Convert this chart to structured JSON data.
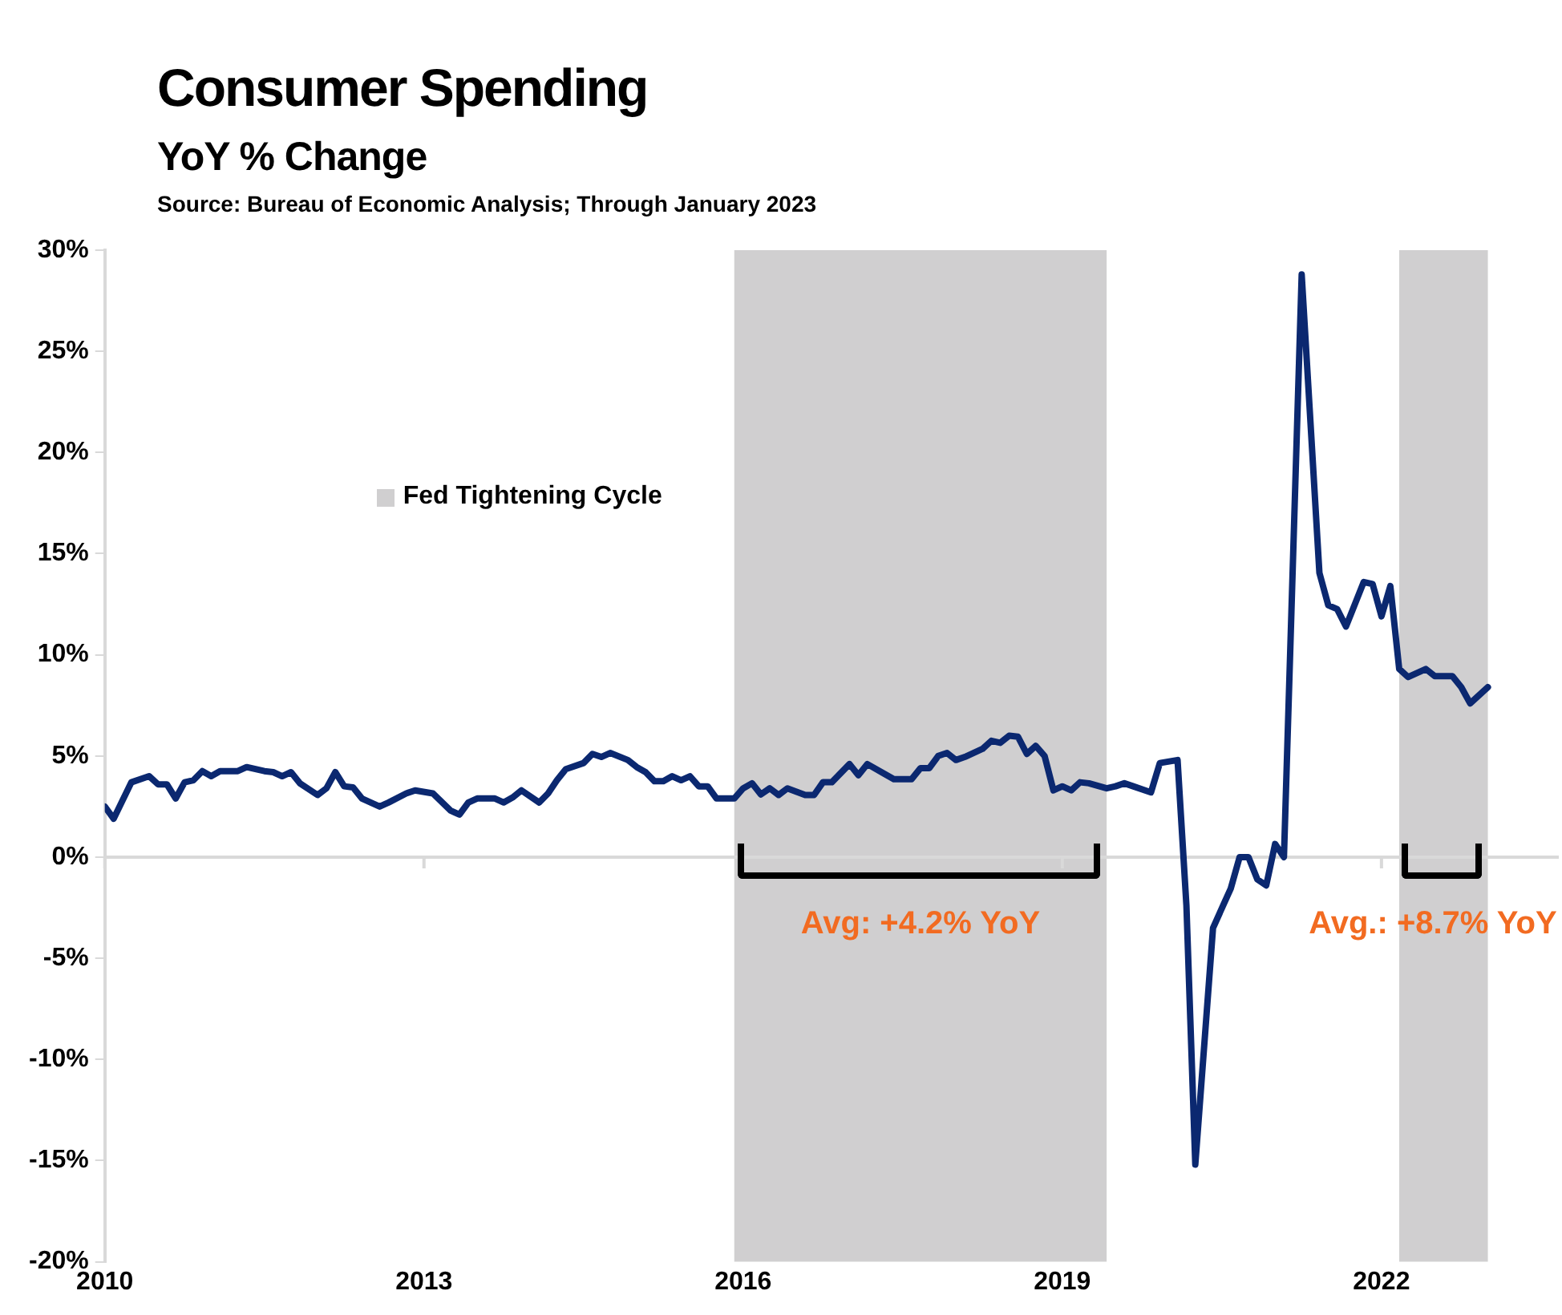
{
  "chart_data": {
    "type": "line",
    "title": "Consumer Spending",
    "subtitle": "YoY % Change",
    "annotations": [
      "Source: Bureau of Economic Analysis; Through January 2023",
      {
        "text": "Avg: +4.2% YoY",
        "x": "2017-09",
        "y": 0
      },
      {
        "text": "Avg.: +8.7% YoY",
        "x": "2022-08",
        "y": 0
      }
    ],
    "series": [
      {
        "color": "#0b2870",
        "x": [
          "2010-01",
          "2010-02",
          "2010-04",
          "2010-06",
          "2010-07",
          "2010-08",
          "2010-09",
          "2010-10",
          "2010-11",
          "2010-12",
          "2011-01",
          "2011-02",
          "2011-04",
          "2011-05",
          "2011-07",
          "2011-08",
          "2011-09",
          "2011-10",
          "2011-11",
          "2012-01",
          "2012-02",
          "2012-03",
          "2012-04",
          "2012-05",
          "2012-06",
          "2012-08",
          "2012-09",
          "2012-11",
          "2012-12",
          "2013-02",
          "2013-04",
          "2013-05",
          "2013-06",
          "2013-07",
          "2013-09",
          "2013-10",
          "2013-11",
          "2013-12",
          "2014-02",
          "2014-03",
          "2014-04",
          "2014-05",
          "2014-07",
          "2014-08",
          "2014-09",
          "2014-10",
          "2014-12",
          "2015-01",
          "2015-02",
          "2015-03",
          "2015-04",
          "2015-05",
          "2015-06",
          "2015-07",
          "2015-08",
          "2015-09",
          "2015-10",
          "2015-12",
          "2016-01",
          "2016-02",
          "2016-03",
          "2016-04",
          "2016-05",
          "2016-06",
          "2016-08",
          "2016-09",
          "2016-10",
          "2016-11",
          "2017-01",
          "2017-02",
          "2017-03",
          "2017-05",
          "2017-06",
          "2017-08",
          "2017-09",
          "2017-10",
          "2017-11",
          "2017-12",
          "2018-01",
          "2018-02",
          "2018-04",
          "2018-05",
          "2018-06",
          "2018-07",
          "2018-08",
          "2018-09",
          "2018-10",
          "2018-11",
          "2018-12",
          "2019-01",
          "2019-02",
          "2019-03",
          "2019-04",
          "2019-06",
          "2019-07",
          "2019-08",
          "2019-09",
          "2019-11",
          "2019-12",
          "2020-02",
          "2020-03",
          "2020-04",
          "2020-06",
          "2020-08",
          "2020-09",
          "2020-10",
          "2020-11",
          "2020-12",
          "2021-01",
          "2021-02",
          "2021-04",
          "2021-06",
          "2021-07",
          "2021-08",
          "2021-09",
          "2021-11",
          "2021-12",
          "2022-01",
          "2022-02",
          "2022-03",
          "2022-04",
          "2022-06",
          "2022-07",
          "2022-09",
          "2022-10",
          "2022-11",
          "2023-01"
        ],
        "values": [
          2.5,
          1.9,
          3.7,
          4.0,
          3.6,
          3.6,
          2.9,
          3.7,
          3.8,
          4.25,
          4.0,
          4.25,
          4.25,
          4.45,
          4.25,
          4.2,
          4.0,
          4.2,
          3.65,
          3.07,
          3.4,
          4.2,
          3.5,
          3.45,
          2.9,
          2.5,
          2.7,
          3.15,
          3.3,
          3.15,
          2.3,
          2.1,
          2.7,
          2.9,
          2.9,
          2.7,
          2.95,
          3.3,
          2.7,
          3.15,
          3.8,
          4.35,
          4.65,
          5.1,
          4.95,
          5.15,
          4.8,
          4.45,
          4.2,
          3.75,
          3.75,
          4.0,
          3.8,
          4.0,
          3.5,
          3.5,
          2.9,
          2.9,
          3.4,
          3.65,
          3.1,
          3.4,
          3.07,
          3.4,
          3.07,
          3.07,
          3.7,
          3.7,
          4.6,
          4.05,
          4.6,
          4.1,
          3.85,
          3.85,
          4.4,
          4.4,
          5.0,
          5.15,
          4.8,
          4.95,
          5.35,
          5.75,
          5.65,
          6.0,
          5.95,
          5.1,
          5.5,
          5.0,
          3.3,
          3.5,
          3.3,
          3.7,
          3.65,
          3.4,
          3.5,
          3.65,
          3.5,
          3.2,
          4.65,
          4.8,
          -2.4,
          -15.2,
          -3.5,
          -1.55,
          0,
          0,
          -1.1,
          -1.4,
          0.65,
          0,
          28.8,
          14.05,
          12.45,
          12.26,
          11.4,
          13.6,
          13.5,
          11.9,
          13.4,
          9.3,
          8.9,
          9.3,
          8.95,
          8.95,
          8.4,
          7.6,
          8.4
        ]
      }
    ],
    "xlim": [
      "2010-01",
      "2023-09"
    ],
    "xticks": [
      "2010",
      "2013",
      "2016",
      "2019",
      "2022"
    ],
    "ylim": [
      -20,
      30
    ],
    "yticks": [
      {
        "value": -20,
        "label": "-20%"
      },
      {
        "value": -15,
        "label": "-15%"
      },
      {
        "value": -10,
        "label": "-10%"
      },
      {
        "value": -5,
        "label": "-5%"
      },
      {
        "value": 0,
        "label": "0%"
      },
      {
        "value": 5,
        "label": "5%"
      },
      {
        "value": 10,
        "label": "10%"
      },
      {
        "value": 15,
        "label": "15%"
      },
      {
        "value": 20,
        "label": "20%"
      },
      {
        "value": 25,
        "label": "25%"
      },
      {
        "value": 30,
        "label": "30%"
      }
    ],
    "bands": [
      {
        "axis": "x",
        "from": "2015-12",
        "to": "2019-06",
        "label": "Fed Tightening Cycle",
        "color": "#d0cfd0"
      },
      {
        "axis": "x",
        "from": "2022-03",
        "to": "2023-01",
        "color": "#d0cfd0"
      }
    ],
    "ref_lines": [
      {
        "axis": "y",
        "value": 0,
        "color": "#d9d9d9"
      }
    ],
    "grid": false,
    "legend": "top left",
    "marker": "none",
    "line_style": "solid"
  }
}
